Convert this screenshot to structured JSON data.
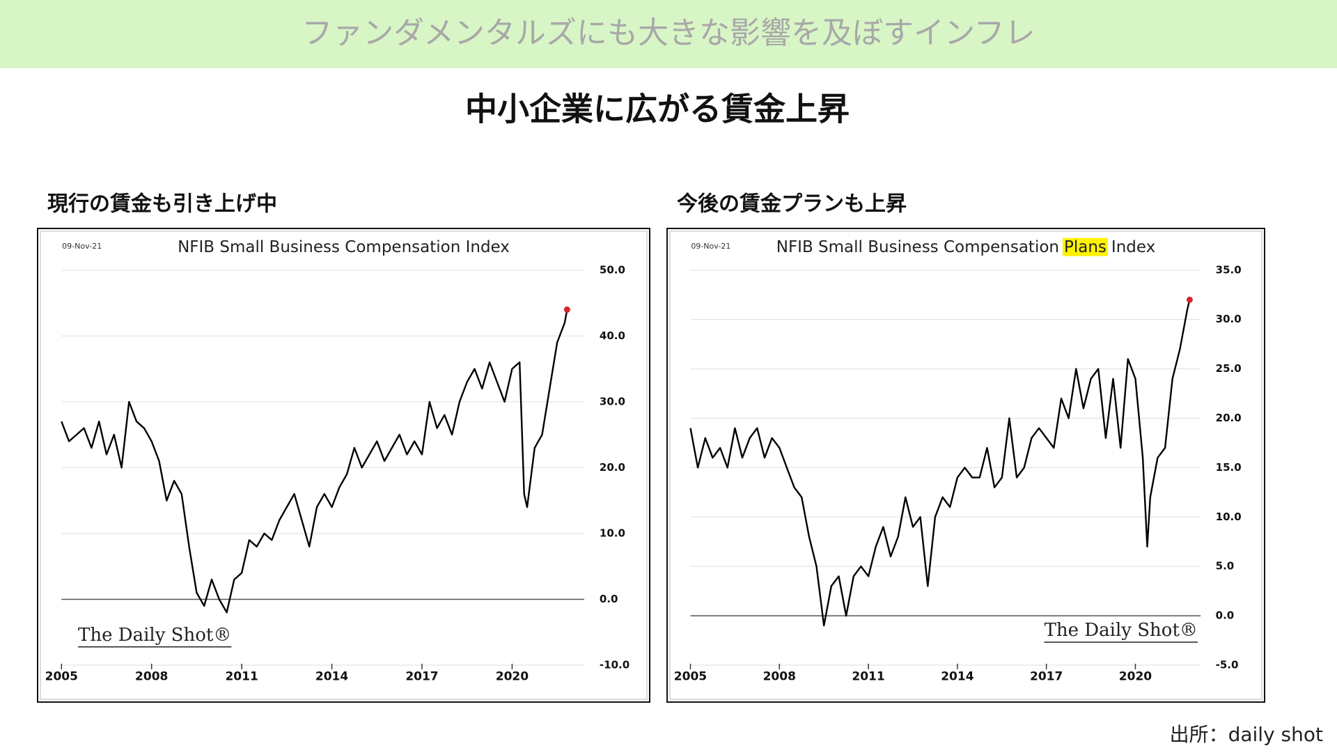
{
  "header": "ファンダメンタルズにも大きな影響を及ぼすインフレ",
  "title": "中小企業に広がる賃金上昇",
  "source": "出所：daily shot",
  "chart_data": [
    {
      "type": "line",
      "panel_title": "現行の賃金も引き上げ中",
      "date_label": "09-Nov-21",
      "title_parts": [
        "NFIB Small Business Compensation Index"
      ],
      "watermark": "The Daily Shot®",
      "color": "#000000",
      "marker_color": "#d62728",
      "grid": true,
      "xlim": [
        2005,
        2022.4
      ],
      "xticks": [
        2005,
        2008,
        2011,
        2014,
        2017,
        2020
      ],
      "ylim": [
        -10,
        50
      ],
      "yticks": [
        {
          "value": -10,
          "label": "-10.0"
        },
        {
          "value": 0,
          "label": "0.0"
        },
        {
          "value": 10,
          "label": "10.0"
        },
        {
          "value": 20,
          "label": "20.0"
        },
        {
          "value": 30,
          "label": "30.0"
        },
        {
          "value": 40,
          "label": "40.0"
        },
        {
          "value": 50,
          "label": "50.0"
        }
      ],
      "x": [
        2005,
        2005.25,
        2005.5,
        2005.75,
        2006,
        2006.25,
        2006.5,
        2006.75,
        2007,
        2007.25,
        2007.5,
        2007.75,
        2008,
        2008.25,
        2008.5,
        2008.75,
        2009,
        2009.25,
        2009.5,
        2009.75,
        2010,
        2010.25,
        2010.5,
        2010.75,
        2011,
        2011.25,
        2011.5,
        2011.75,
        2012,
        2012.25,
        2012.5,
        2012.75,
        2013,
        2013.25,
        2013.5,
        2013.75,
        2014,
        2014.25,
        2014.5,
        2014.75,
        2015,
        2015.25,
        2015.5,
        2015.75,
        2016,
        2016.25,
        2016.5,
        2016.75,
        2017,
        2017.25,
        2017.5,
        2017.75,
        2018,
        2018.25,
        2018.5,
        2018.75,
        2019,
        2019.25,
        2019.5,
        2019.75,
        2020,
        2020.25,
        2020.4,
        2020.5,
        2020.75,
        2021,
        2021.25,
        2021.5,
        2021.75,
        2021.83
      ],
      "values": [
        27,
        24,
        25,
        26,
        23,
        27,
        22,
        25,
        20,
        30,
        27,
        26,
        24,
        21,
        15,
        18,
        16,
        8,
        1,
        -1,
        3,
        0,
        -2,
        3,
        4,
        9,
        8,
        10,
        9,
        12,
        14,
        16,
        12,
        8,
        14,
        16,
        14,
        17,
        19,
        23,
        20,
        22,
        24,
        21,
        23,
        25,
        22,
        24,
        22,
        30,
        26,
        28,
        25,
        30,
        33,
        35,
        32,
        36,
        33,
        30,
        35,
        36,
        16,
        14,
        23,
        25,
        32,
        39,
        42,
        44
      ]
    },
    {
      "type": "line",
      "panel_title": "今後の賃金プランも上昇",
      "date_label": "09-Nov-21",
      "title_parts": [
        "NFIB Small Business Compensation",
        "Plans",
        "Index"
      ],
      "highlight": 1,
      "watermark": "The Daily Shot®",
      "color": "#000000",
      "marker_color": "#d62728",
      "grid": true,
      "xlim": [
        2005,
        2022.2
      ],
      "xticks": [
        2005,
        2008,
        2011,
        2014,
        2017,
        2020
      ],
      "ylim": [
        -5,
        35
      ],
      "yticks": [
        {
          "value": -5,
          "label": "-5.0"
        },
        {
          "value": 0,
          "label": "0.0"
        },
        {
          "value": 5,
          "label": "5.0"
        },
        {
          "value": 10,
          "label": "10.0"
        },
        {
          "value": 15,
          "label": "15.0"
        },
        {
          "value": 20,
          "label": "20.0"
        },
        {
          "value": 25,
          "label": "25.0"
        },
        {
          "value": 30,
          "label": "30.0"
        },
        {
          "value": 35,
          "label": "35.0"
        }
      ],
      "x": [
        2005,
        2005.25,
        2005.5,
        2005.75,
        2006,
        2006.25,
        2006.5,
        2006.75,
        2007,
        2007.25,
        2007.5,
        2007.75,
        2008,
        2008.25,
        2008.5,
        2008.75,
        2009,
        2009.25,
        2009.5,
        2009.75,
        2010,
        2010.25,
        2010.5,
        2010.75,
        2011,
        2011.25,
        2011.5,
        2011.75,
        2012,
        2012.25,
        2012.5,
        2012.75,
        2013,
        2013.25,
        2013.5,
        2013.75,
        2014,
        2014.25,
        2014.5,
        2014.75,
        2015,
        2015.25,
        2015.5,
        2015.75,
        2016,
        2016.25,
        2016.5,
        2016.75,
        2017,
        2017.25,
        2017.5,
        2017.75,
        2018,
        2018.25,
        2018.5,
        2018.75,
        2019,
        2019.25,
        2019.5,
        2019.75,
        2020,
        2020.25,
        2020.4,
        2020.5,
        2020.75,
        2021,
        2021.25,
        2021.5,
        2021.75,
        2021.83
      ],
      "values": [
        19,
        15,
        18,
        16,
        17,
        15,
        19,
        16,
        18,
        19,
        16,
        18,
        17,
        15,
        13,
        12,
        8,
        5,
        -1,
        3,
        4,
        0,
        4,
        5,
        4,
        7,
        9,
        6,
        8,
        12,
        9,
        10,
        3,
        10,
        12,
        11,
        14,
        15,
        14,
        14,
        17,
        13,
        14,
        20,
        14,
        15,
        18,
        19,
        18,
        17,
        22,
        20,
        25,
        21,
        24,
        25,
        18,
        24,
        17,
        26,
        24,
        16,
        7,
        12,
        16,
        17,
        24,
        27,
        31,
        32
      ]
    }
  ]
}
